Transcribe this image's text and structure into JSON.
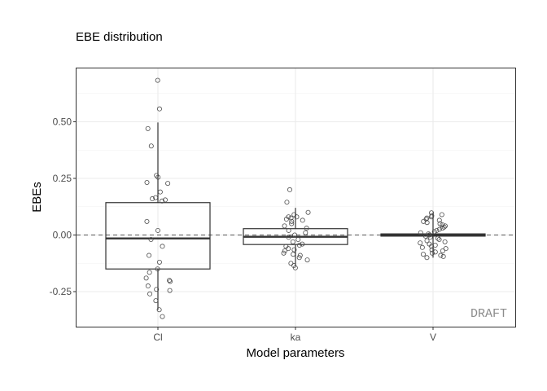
{
  "chart_data": {
    "type": "box",
    "title": "EBE distribution",
    "xlabel": "Model parameters",
    "ylabel": "EBEs",
    "categories": [
      "Cl",
      "ka",
      "V"
    ],
    "ylim": [
      -0.38,
      0.73
    ],
    "yticks": [
      -0.25,
      0.0,
      0.25,
      0.5
    ],
    "ytick_labels": [
      "-0.25",
      "0.00",
      "0.25",
      "0.50"
    ],
    "grid": true,
    "reference_line": {
      "y": 0,
      "style": "dashed"
    },
    "watermark": "DRAFT",
    "boxes": [
      {
        "category": "Cl",
        "whisker_low": -0.33,
        "q1": -0.15,
        "median": -0.015,
        "q3": 0.143,
        "whisker_high": 0.497
      },
      {
        "category": "ka",
        "whisker_low": -0.135,
        "q1": -0.042,
        "median": -0.008,
        "q3": 0.028,
        "whisker_high": 0.12
      },
      {
        "category": "V",
        "whisker_low": -0.1,
        "q1": -0.005,
        "median": 0.0,
        "q3": 0.005,
        "whisker_high": 0.1
      }
    ],
    "points": [
      {
        "category": "Cl",
        "values": [
          0.683,
          0.557,
          0.47,
          0.393,
          0.263,
          0.255,
          0.232,
          0.228,
          0.19,
          0.165,
          0.16,
          0.155,
          0.15,
          0.06,
          0.02,
          -0.02,
          -0.05,
          -0.09,
          -0.12,
          -0.15,
          -0.165,
          -0.19,
          -0.2,
          -0.205,
          -0.225,
          -0.24,
          -0.245,
          -0.26,
          -0.29,
          -0.33,
          -0.36
        ]
      },
      {
        "category": "ka",
        "values": [
          0.2,
          0.145,
          0.1,
          0.09,
          0.08,
          0.08,
          0.075,
          0.07,
          0.065,
          0.06,
          0.05,
          0.04,
          0.03,
          0.02,
          0.01,
          0.0,
          -0.01,
          -0.02,
          -0.03,
          -0.04,
          -0.045,
          -0.05,
          -0.06,
          -0.065,
          -0.07,
          -0.08,
          -0.085,
          -0.09,
          -0.1,
          -0.11,
          -0.125,
          -0.135,
          -0.145
        ]
      },
      {
        "category": "V",
        "values": [
          0.098,
          0.09,
          0.085,
          0.08,
          0.075,
          0.07,
          0.065,
          0.06,
          0.055,
          0.05,
          0.045,
          0.04,
          0.035,
          0.03,
          0.025,
          0.02,
          0.015,
          0.01,
          0.005,
          0.0,
          -0.005,
          -0.01,
          -0.015,
          -0.02,
          -0.025,
          -0.03,
          -0.035,
          -0.04,
          -0.045,
          -0.05,
          -0.055,
          -0.06,
          -0.065,
          -0.07,
          -0.075,
          -0.08,
          -0.085,
          -0.09,
          -0.095,
          -0.1
        ]
      }
    ]
  }
}
